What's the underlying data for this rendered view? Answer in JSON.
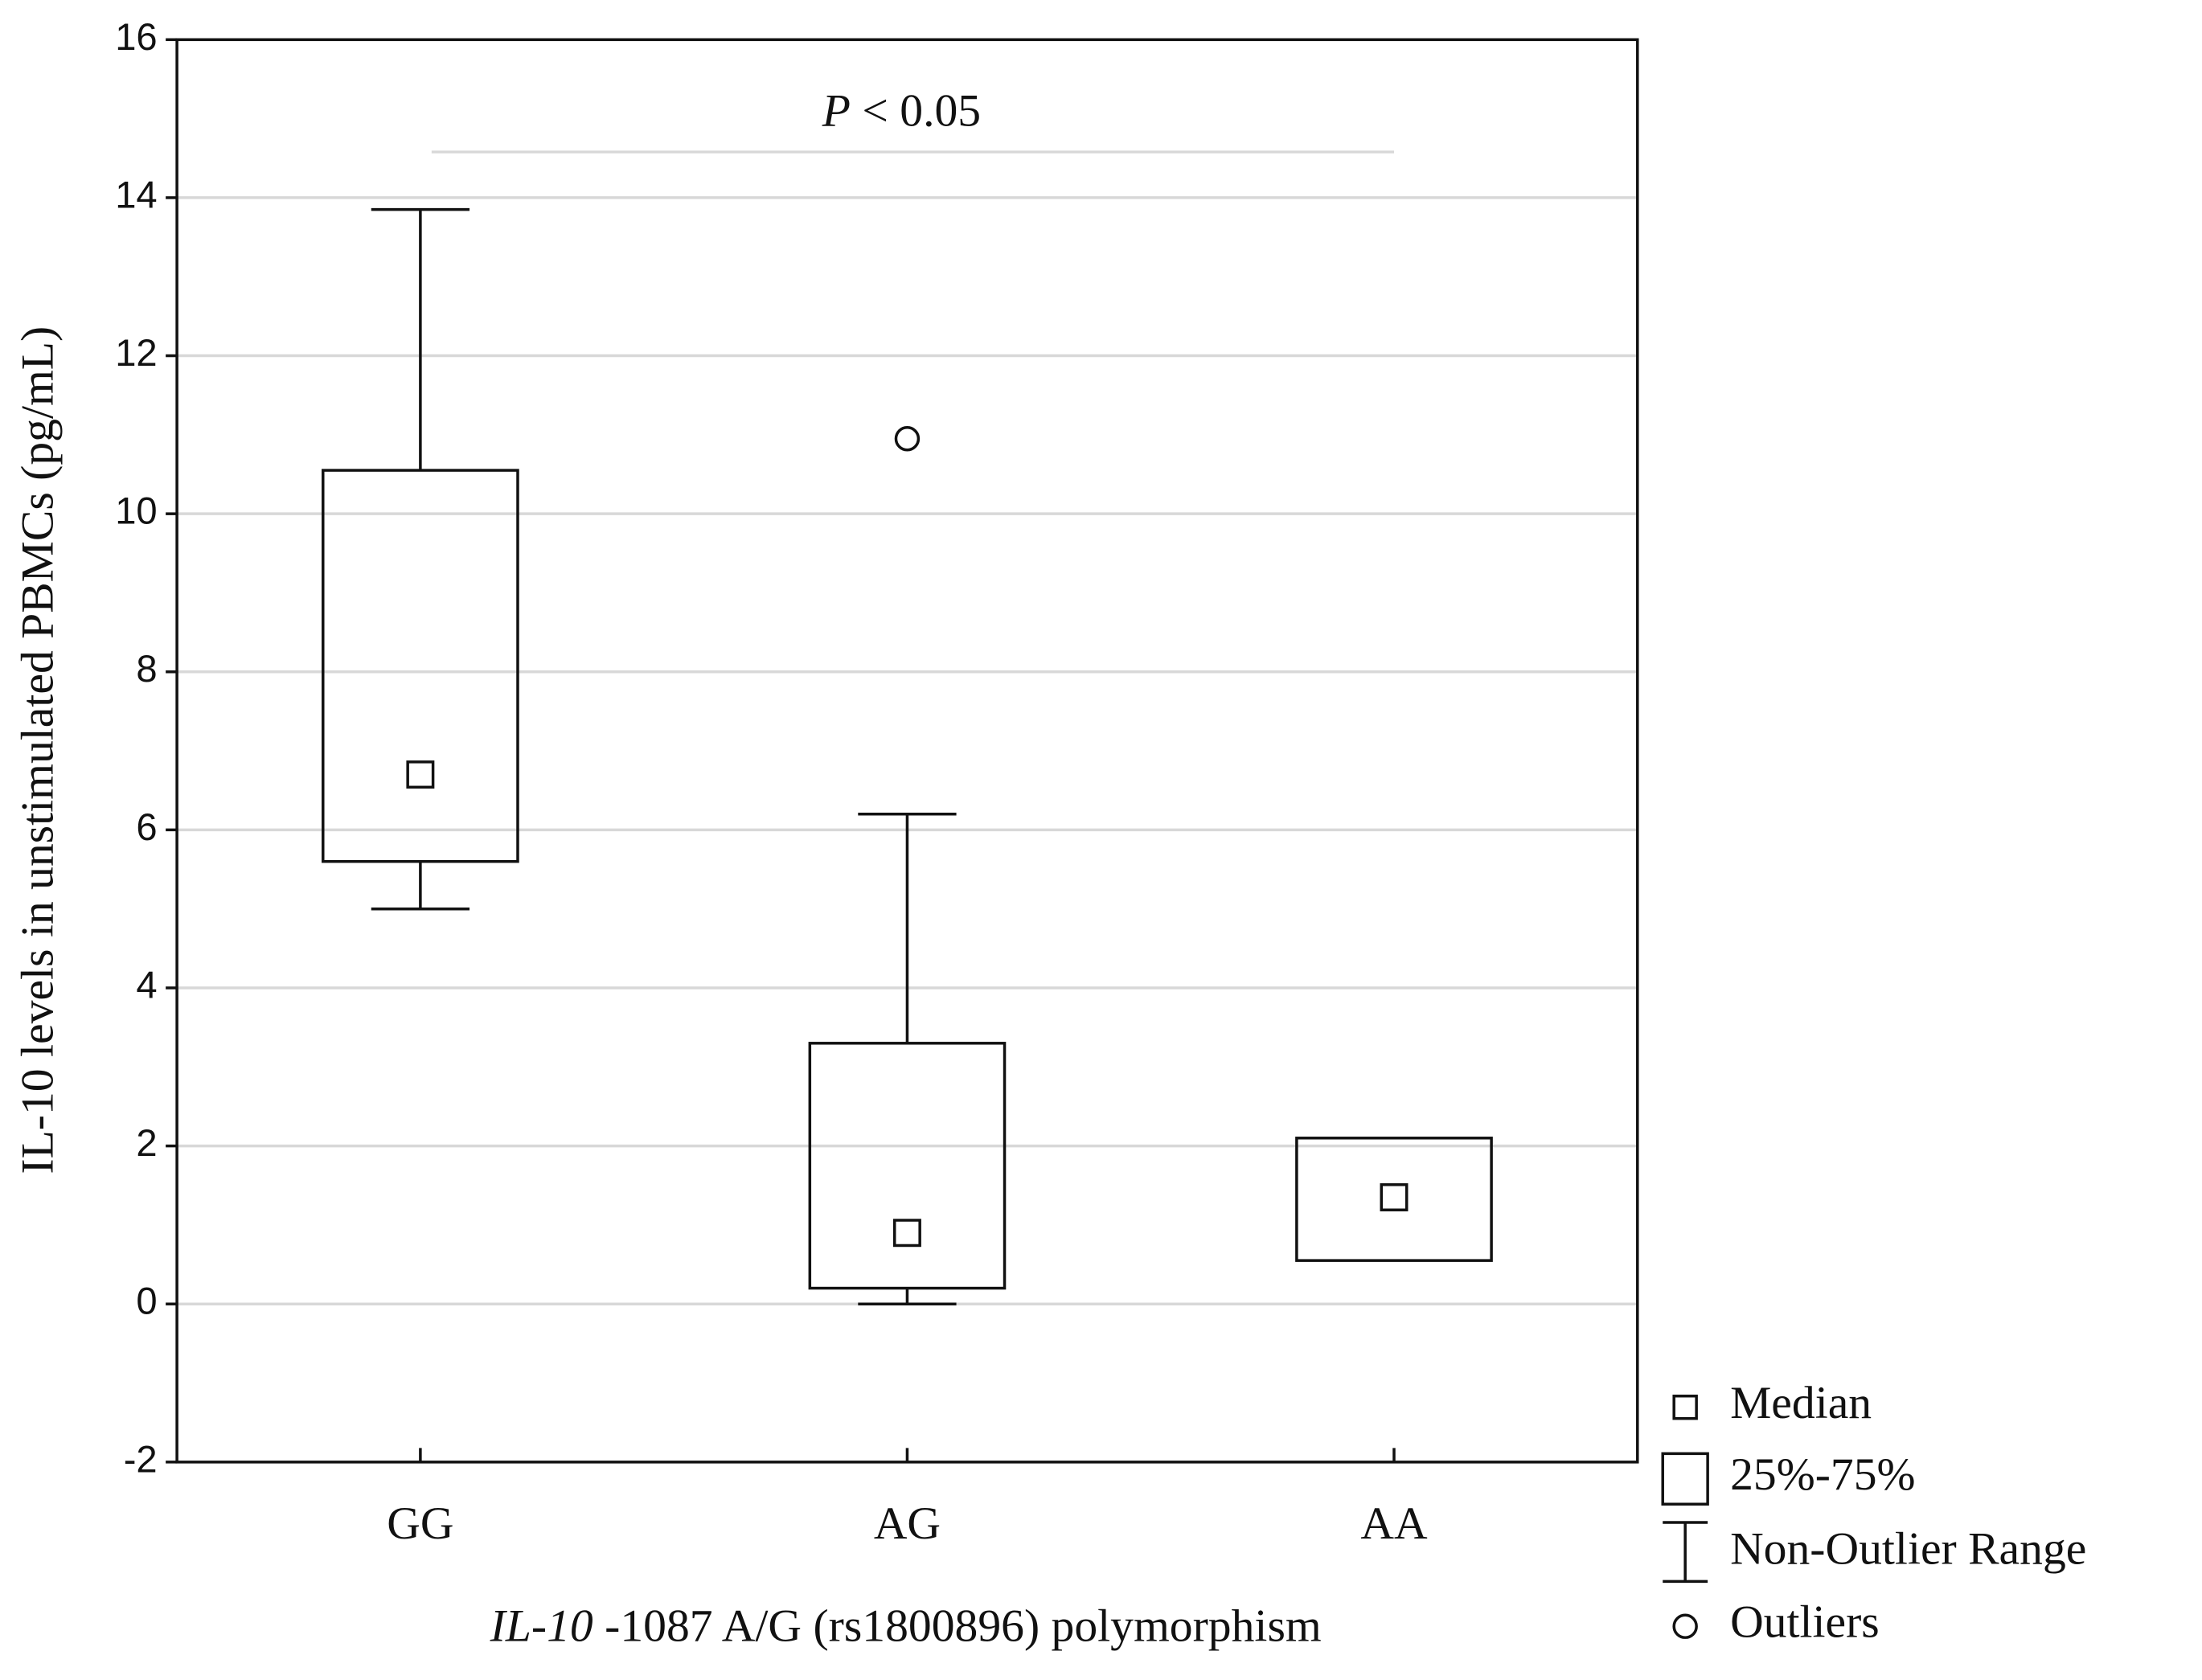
{
  "chart_data": {
    "type": "box",
    "y_label": "IL-10 levels in unstimulated PBMCs (pg/mL)",
    "x_label_italic": "IL-10",
    "x_label": "-1087 A/G (rs1800896) polymorphism",
    "annotation_italic": "P",
    "annotation": "< 0.05",
    "categories": [
      "GG",
      "AG",
      "AA"
    ],
    "whisker_low": [
      5.0,
      0,
      null
    ],
    "q1": [
      5.6,
      0.2,
      0.55
    ],
    "median": [
      6.7,
      0.9,
      1.35
    ],
    "q3": [
      10.55,
      3.3,
      2.1
    ],
    "whisker_high": [
      13.85,
      6.2,
      null
    ],
    "outliers": [
      [],
      [
        10.95
      ],
      []
    ],
    "legend": [
      "Median",
      "25%-75%",
      "Non-Outlier Range",
      "Outliers"
    ],
    "ylim": [
      -2,
      16
    ],
    "yticks": [
      -2,
      0,
      2,
      4,
      6,
      8,
      10,
      12,
      14,
      16
    ],
    "grid": true
  }
}
